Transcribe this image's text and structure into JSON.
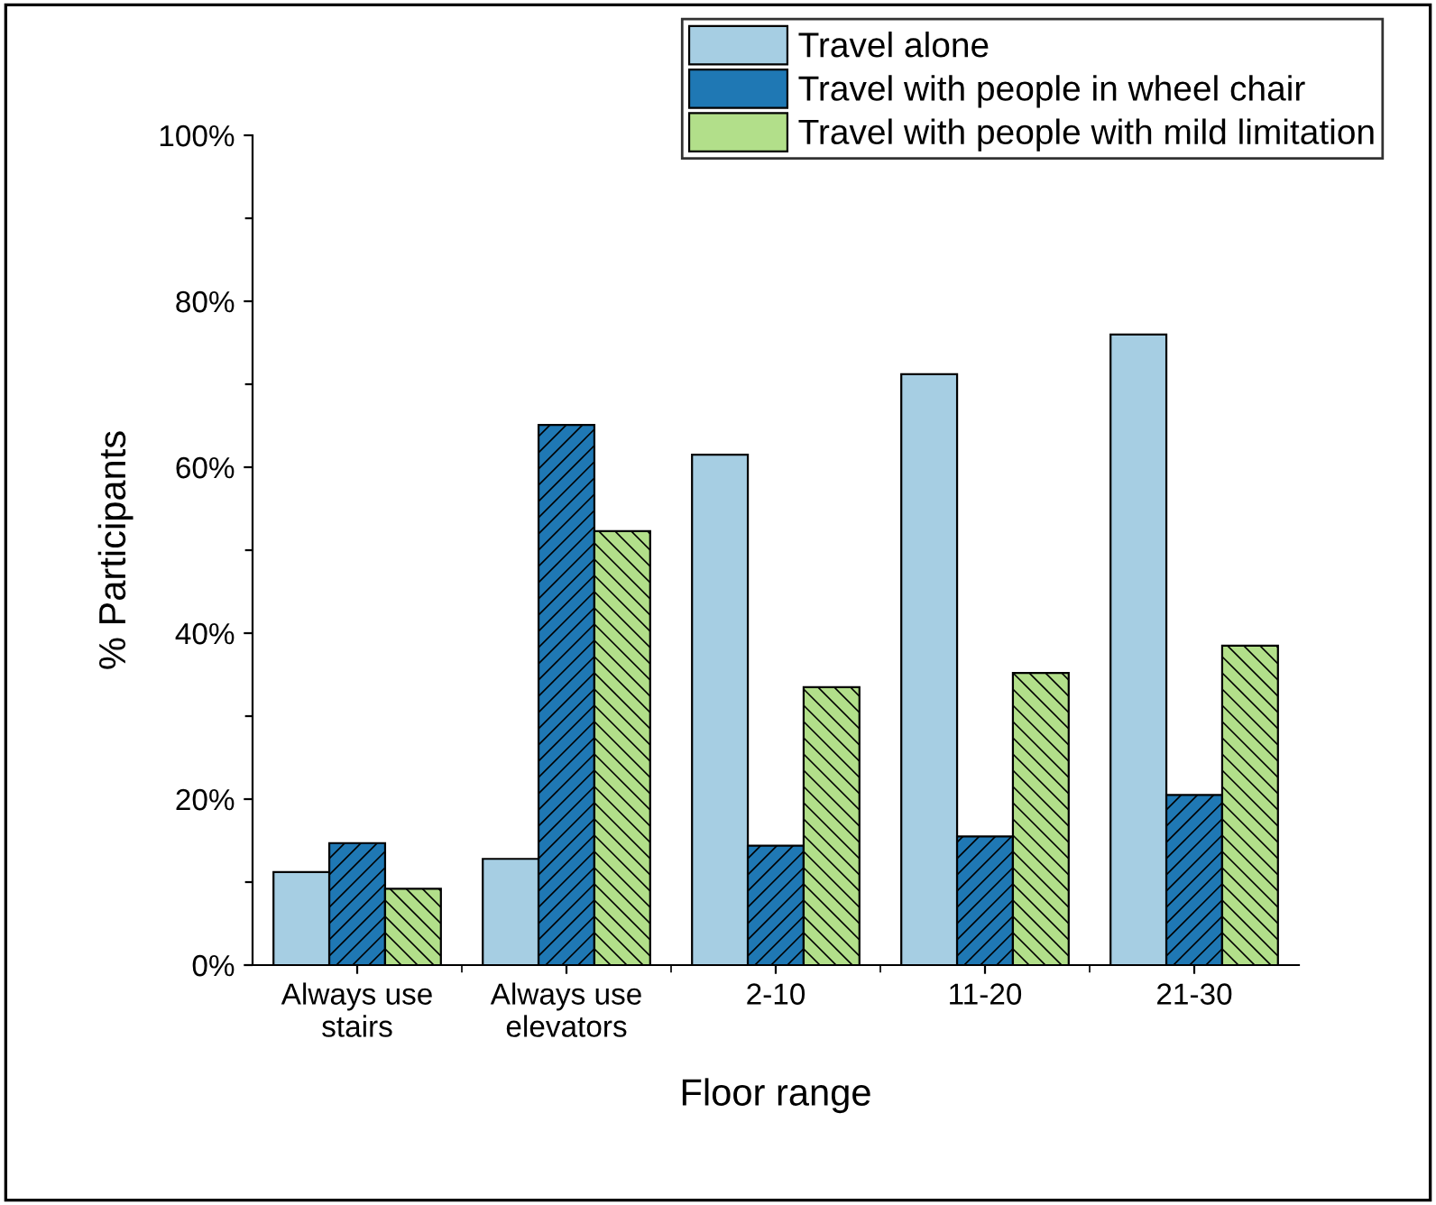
{
  "chart_data": {
    "type": "bar",
    "xlabel": "Floor range",
    "ylabel": "% Participants",
    "categories": [
      "Always use\nstairs",
      "Always use\nelevators",
      "2-10",
      "11-20",
      "21-30"
    ],
    "series": [
      {
        "name": "Travel alone",
        "color": "#a6cee3",
        "values": [
          11.2,
          12.8,
          61.5,
          71.2,
          76.0
        ]
      },
      {
        "name": "Travel with people in wheel chair",
        "color": "#1f78b4",
        "values": [
          14.7,
          65.1,
          14.4,
          15.5,
          20.5
        ]
      },
      {
        "name": "Travel with people with mild limitation",
        "color": "#b2df8a",
        "values": [
          9.2,
          52.3,
          33.5,
          35.2,
          38.5
        ]
      }
    ],
    "ylim": [
      0,
      100
    ],
    "yticks": [
      {
        "value": 0,
        "label": "0%"
      },
      {
        "value": 10,
        "label": null
      },
      {
        "value": 20,
        "label": "20%"
      },
      {
        "value": 30,
        "label": null
      },
      {
        "value": 40,
        "label": "40%"
      },
      {
        "value": 50,
        "label": null
      },
      {
        "value": 60,
        "label": "60%"
      },
      {
        "value": 70,
        "label": null
      },
      {
        "value": 80,
        "label": "80%"
      },
      {
        "value": 90,
        "label": null
      },
      {
        "value": 100,
        "label": "100%"
      }
    ],
    "grid": false,
    "legend": "top right"
  }
}
